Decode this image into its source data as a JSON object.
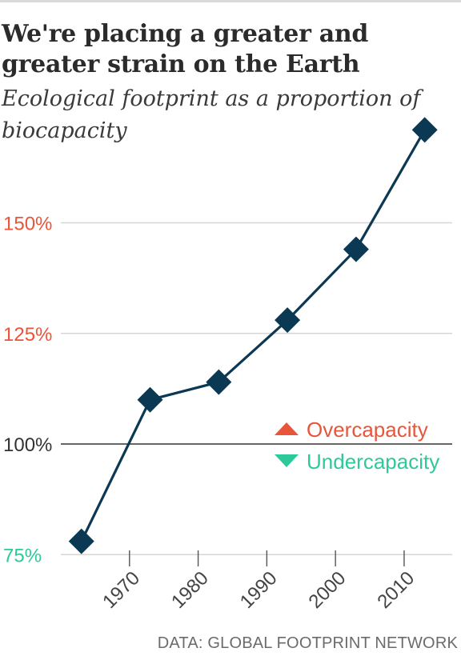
{
  "chart_data": {
    "type": "line",
    "title": "We're placing a greater and greater strain on the Earth",
    "subtitle": "Ecological footprint as a proportion of biocapacity",
    "x": [
      1963,
      1973,
      1983,
      1993,
      2003,
      2013
    ],
    "values": [
      78,
      110,
      114,
      128,
      144,
      171
    ],
    "ylim": [
      72,
      178
    ],
    "xlim": [
      1960,
      2017
    ],
    "y_ticks": [
      {
        "value": 150,
        "label": "150%",
        "color": "#e8553a"
      },
      {
        "value": 125,
        "label": "125%",
        "color": "#e8553a"
      },
      {
        "value": 100,
        "label": "100%",
        "color": "#333333"
      },
      {
        "value": 75,
        "label": "75%",
        "color": "#2dc99b"
      }
    ],
    "x_ticks": [
      {
        "value": 1970,
        "label": "1970"
      },
      {
        "value": 1980,
        "label": "1980"
      },
      {
        "value": 1990,
        "label": "1990"
      },
      {
        "value": 2000,
        "label": "2000"
      },
      {
        "value": 2010,
        "label": "2010"
      }
    ],
    "reference_line": 100,
    "grid": true,
    "legend": [
      {
        "label": "Overcapacity",
        "marker": "triangle-up",
        "color": "#e8553a"
      },
      {
        "label": "Undercapacity",
        "marker": "triangle-down",
        "color": "#2dc99b"
      }
    ],
    "line_color": "#0b3954",
    "source": "DATA: GLOBAL FOOTPRINT NETWORK"
  }
}
